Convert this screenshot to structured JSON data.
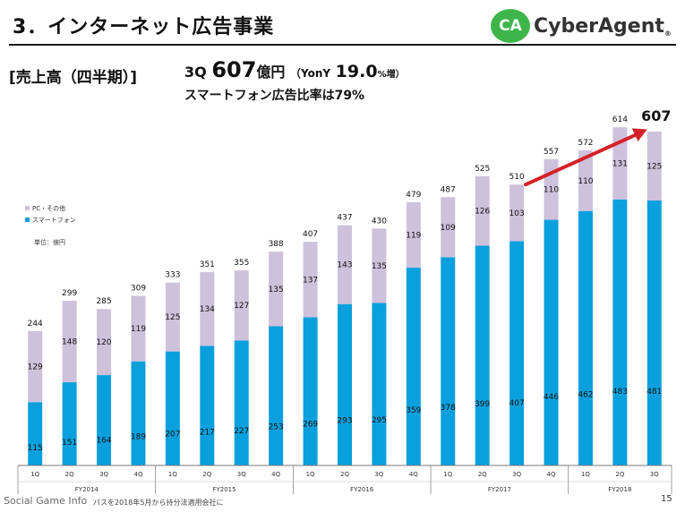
{
  "header": {
    "title": "3．インターネット広告事業",
    "logo_badge": "CA",
    "logo_text": "CyberAgent",
    "logo_mark": "®"
  },
  "summary": {
    "section_label": "[売上高（四半期）]",
    "quarter": "3Q",
    "amount": "607",
    "amount_unit": "億円",
    "yoy_open": "（YonY",
    "yoy_value": "19.0",
    "yoy_close": "%増）",
    "smartphone_ratio": "スマートフォン広告比率は79%"
  },
  "footer": {
    "watermark": "Social Game Info",
    "note": "パスを2018年5月から持分法適用会社に",
    "page_number": "15"
  },
  "colors": {
    "smartphone": "#0aa0dd",
    "pc_other": "#cdc1dc",
    "arrow": "#d42128",
    "logo_green": "#3eb54a"
  },
  "chart_data": {
    "type": "bar",
    "stacked": true,
    "unit_label": "単位：億円",
    "fiscal_years": [
      {
        "label": "FY2014",
        "quarters": 4
      },
      {
        "label": "FY2015",
        "quarters": 4
      },
      {
        "label": "FY2016",
        "quarters": 4
      },
      {
        "label": "FY2017",
        "quarters": 4
      },
      {
        "label": "FY2018",
        "quarters": 3
      }
    ],
    "categories": [
      "1Q",
      "2Q",
      "3Q",
      "4Q",
      "1Q",
      "2Q",
      "3Q",
      "4Q",
      "1Q",
      "2Q",
      "3Q",
      "4Q",
      "1Q",
      "2Q",
      "3Q",
      "4Q",
      "1Q",
      "2Q",
      "3Q"
    ],
    "series": [
      {
        "name": "スマートフォン",
        "color": "#0aa0dd",
        "values": [
          115,
          151,
          164,
          189,
          207,
          217,
          227,
          253,
          269,
          293,
          295,
          359,
          378,
          399,
          407,
          446,
          462,
          483,
          481
        ]
      },
      {
        "name": "PC・その他",
        "color": "#cdc1dc",
        "values": [
          129,
          148,
          120,
          119,
          125,
          134,
          127,
          135,
          137,
          143,
          135,
          119,
          109,
          126,
          103,
          110,
          110,
          131,
          125
        ]
      }
    ],
    "totals": [
      244,
      299,
      285,
      309,
      333,
      351,
      355,
      388,
      407,
      437,
      430,
      479,
      487,
      525,
      510,
      557,
      572,
      614,
      607
    ],
    "highlight_total": "607",
    "ylim": [
      0,
      650
    ],
    "annotation": "arrow from FY2017 3Q to FY2018 3Q"
  }
}
